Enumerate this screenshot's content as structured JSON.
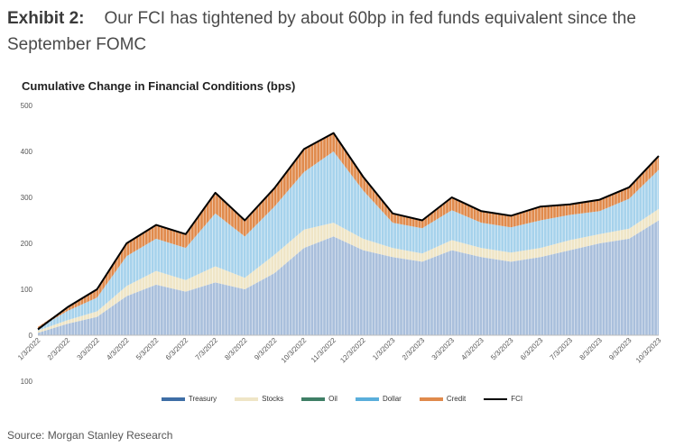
{
  "exhibit": {
    "label": "Exhibit 2:",
    "title": "Our FCI has tightened by about 60bp in fed funds equivalent since the September FOMC"
  },
  "source": "Source: Morgan Stanley Research",
  "chart_data": {
    "type": "area",
    "title": "Cumulative Change in Financial Conditions (bps)",
    "ylim": [
      -100,
      500
    ],
    "yticks": [
      {
        "value": 500,
        "label": "500"
      },
      {
        "value": 400,
        "label": "400"
      },
      {
        "value": 300,
        "label": "300"
      },
      {
        "value": 200,
        "label": "200"
      },
      {
        "value": 100,
        "label": "100"
      },
      {
        "value": 0,
        "label": "0"
      },
      {
        "value": -100,
        "label": "100"
      }
    ],
    "grid": false,
    "legend_position": "bottom",
    "categories": [
      "1/3/2022",
      "2/3/2022",
      "3/3/2022",
      "4/3/2022",
      "5/3/2022",
      "6/3/2022",
      "7/3/2022",
      "8/3/2022",
      "9/3/2022",
      "10/3/2022",
      "11/3/2022",
      "12/3/2022",
      "1/3/2023",
      "2/3/2023",
      "3/3/2023",
      "4/3/2023",
      "5/3/2023",
      "6/3/2023",
      "7/3/2023",
      "8/3/2023",
      "9/3/2023",
      "10/3/2023"
    ],
    "series": [
      {
        "name": "Treasury",
        "color": "#a9bfdc",
        "values": [
          5,
          25,
          40,
          85,
          110,
          95,
          115,
          100,
          135,
          190,
          215,
          185,
          170,
          160,
          185,
          170,
          160,
          170,
          185,
          200,
          210,
          250
        ]
      },
      {
        "name": "Stocks",
        "color": "#efe5c6",
        "values": [
          5,
          8,
          12,
          22,
          30,
          25,
          35,
          25,
          40,
          40,
          30,
          25,
          20,
          18,
          22,
          20,
          20,
          20,
          22,
          20,
          22,
          25
        ]
      },
      {
        "name": "Oil",
        "color": "#3f7f66",
        "values": [
          0,
          0,
          0,
          0,
          0,
          0,
          0,
          0,
          0,
          0,
          0,
          0,
          0,
          0,
          0,
          0,
          0,
          0,
          0,
          0,
          0,
          0
        ]
      },
      {
        "name": "Dollar",
        "color": "#a6d2ec",
        "values": [
          5,
          20,
          30,
          65,
          70,
          70,
          115,
          90,
          105,
          125,
          155,
          105,
          55,
          55,
          65,
          55,
          55,
          60,
          55,
          50,
          65,
          85
        ]
      },
      {
        "name": "Credit",
        "color": "#e08a4c",
        "values": [
          3,
          8,
          18,
          28,
          30,
          30,
          45,
          35,
          40,
          50,
          40,
          30,
          20,
          17,
          28,
          25,
          25,
          30,
          23,
          25,
          25,
          30
        ]
      },
      {
        "name": "FCI",
        "color": "#000000",
        "values": [
          13,
          61,
          100,
          200,
          240,
          220,
          310,
          250,
          320,
          405,
          440,
          345,
          265,
          250,
          300,
          270,
          260,
          280,
          285,
          295,
          322,
          390
        ]
      }
    ]
  }
}
